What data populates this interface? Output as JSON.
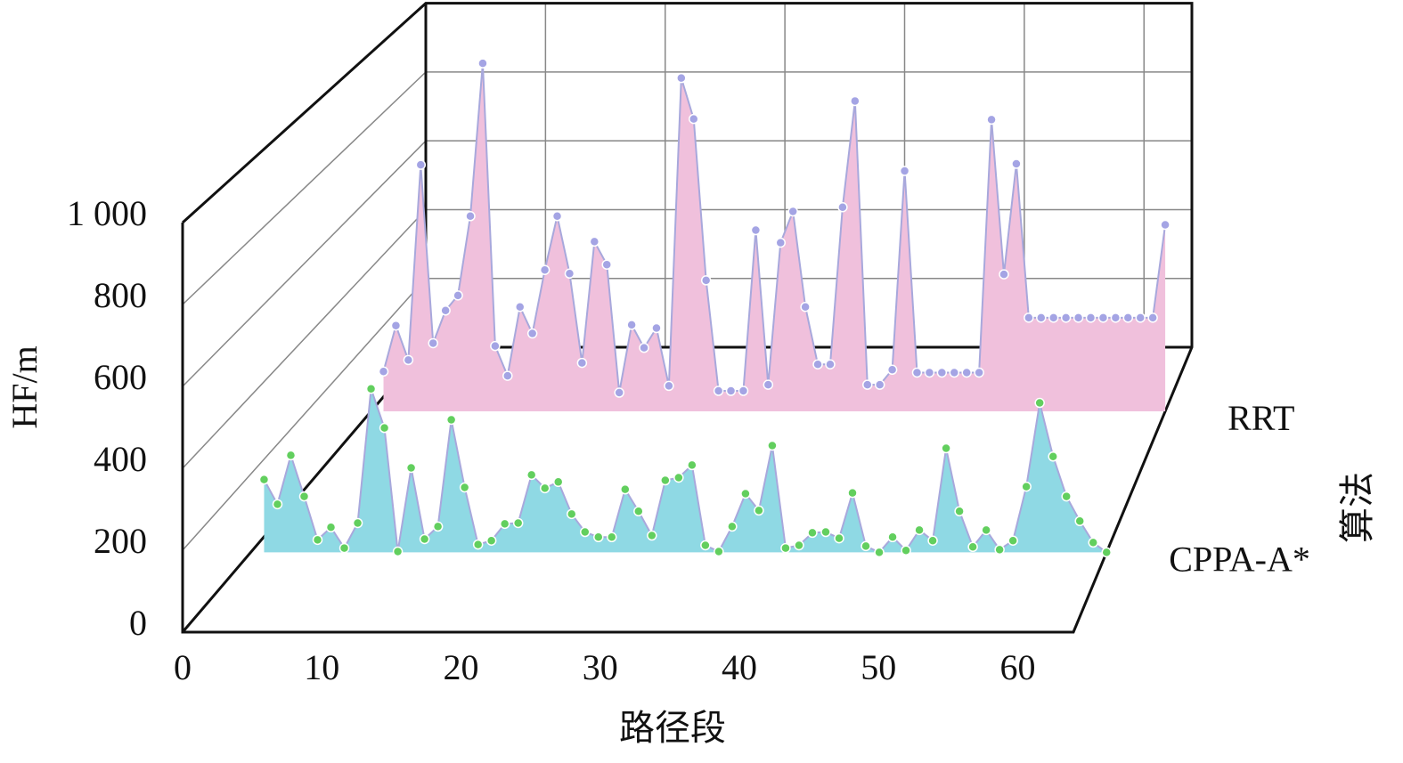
{
  "chart_data": {
    "type": "area",
    "x_label": "路径段",
    "y_label": "HF/m",
    "z_label": "算法",
    "x": [
      1,
      2,
      3,
      4,
      5,
      6,
      7,
      8,
      9,
      10,
      11,
      12,
      13,
      14,
      15,
      16,
      17,
      18,
      19,
      20,
      21,
      22,
      23,
      24,
      25,
      26,
      27,
      28,
      29,
      30,
      31,
      32,
      33,
      34,
      35,
      36,
      37,
      38,
      39,
      40,
      41,
      42,
      43,
      44,
      45,
      46,
      47,
      48,
      49,
      50,
      51,
      52,
      53,
      54,
      55,
      56,
      57,
      58,
      59,
      60,
      61,
      62,
      63,
      64
    ],
    "xlim": [
      0,
      64
    ],
    "xticks": [
      0,
      10,
      20,
      30,
      40,
      50,
      60
    ],
    "ylim": [
      0,
      1000
    ],
    "yticks": [
      0,
      200,
      400,
      600,
      800,
      {
        "value": 1000,
        "label": "1 000"
      }
    ],
    "grid": true,
    "series": [
      {
        "name": "CPPA-A*",
        "color": "#8fd9e4",
        "marker_color": "#62cf5e",
        "values": [
          186,
          123,
          248,
          143,
          32,
          64,
          11,
          75,
          418,
          318,
          2,
          216,
          34,
          66,
          339,
          166,
          20,
          30,
          73,
          75,
          198,
          164,
          180,
          98,
          52,
          39,
          39,
          161,
          105,
          43,
          184,
          191,
          223,
          18,
          2,
          66,
          150,
          107,
          273,
          11,
          18,
          50,
          52,
          36,
          152,
          16,
          0,
          39,
          5,
          57,
          30,
          266,
          105,
          14,
          57,
          7,
          30,
          168,
          382,
          245,
          143,
          80,
          25,
          0
        ]
      },
      {
        "name": "RRT",
        "color": "#f0c0dc",
        "marker_color": "#a4a4e4",
        "values": [
          111,
          239,
          143,
          687,
          190,
          281,
          323,
          544,
          970,
          182,
          99,
          291,
          217,
          394,
          544,
          384,
          135,
          473,
          409,
          52,
          241,
          177,
          232,
          71,
          929,
          815,
          365,
          57,
          57,
          57,
          505,
          74,
          470,
          557,
          291,
          131,
          131,
          569,
          865,
          74,
          74,
          116,
          670,
          108,
          108,
          108,
          108,
          108,
          108,
          813,
          382,
          690,
          261,
          261,
          261,
          261,
          261,
          261,
          261,
          261,
          261,
          261,
          261,
          520
        ]
      }
    ]
  }
}
